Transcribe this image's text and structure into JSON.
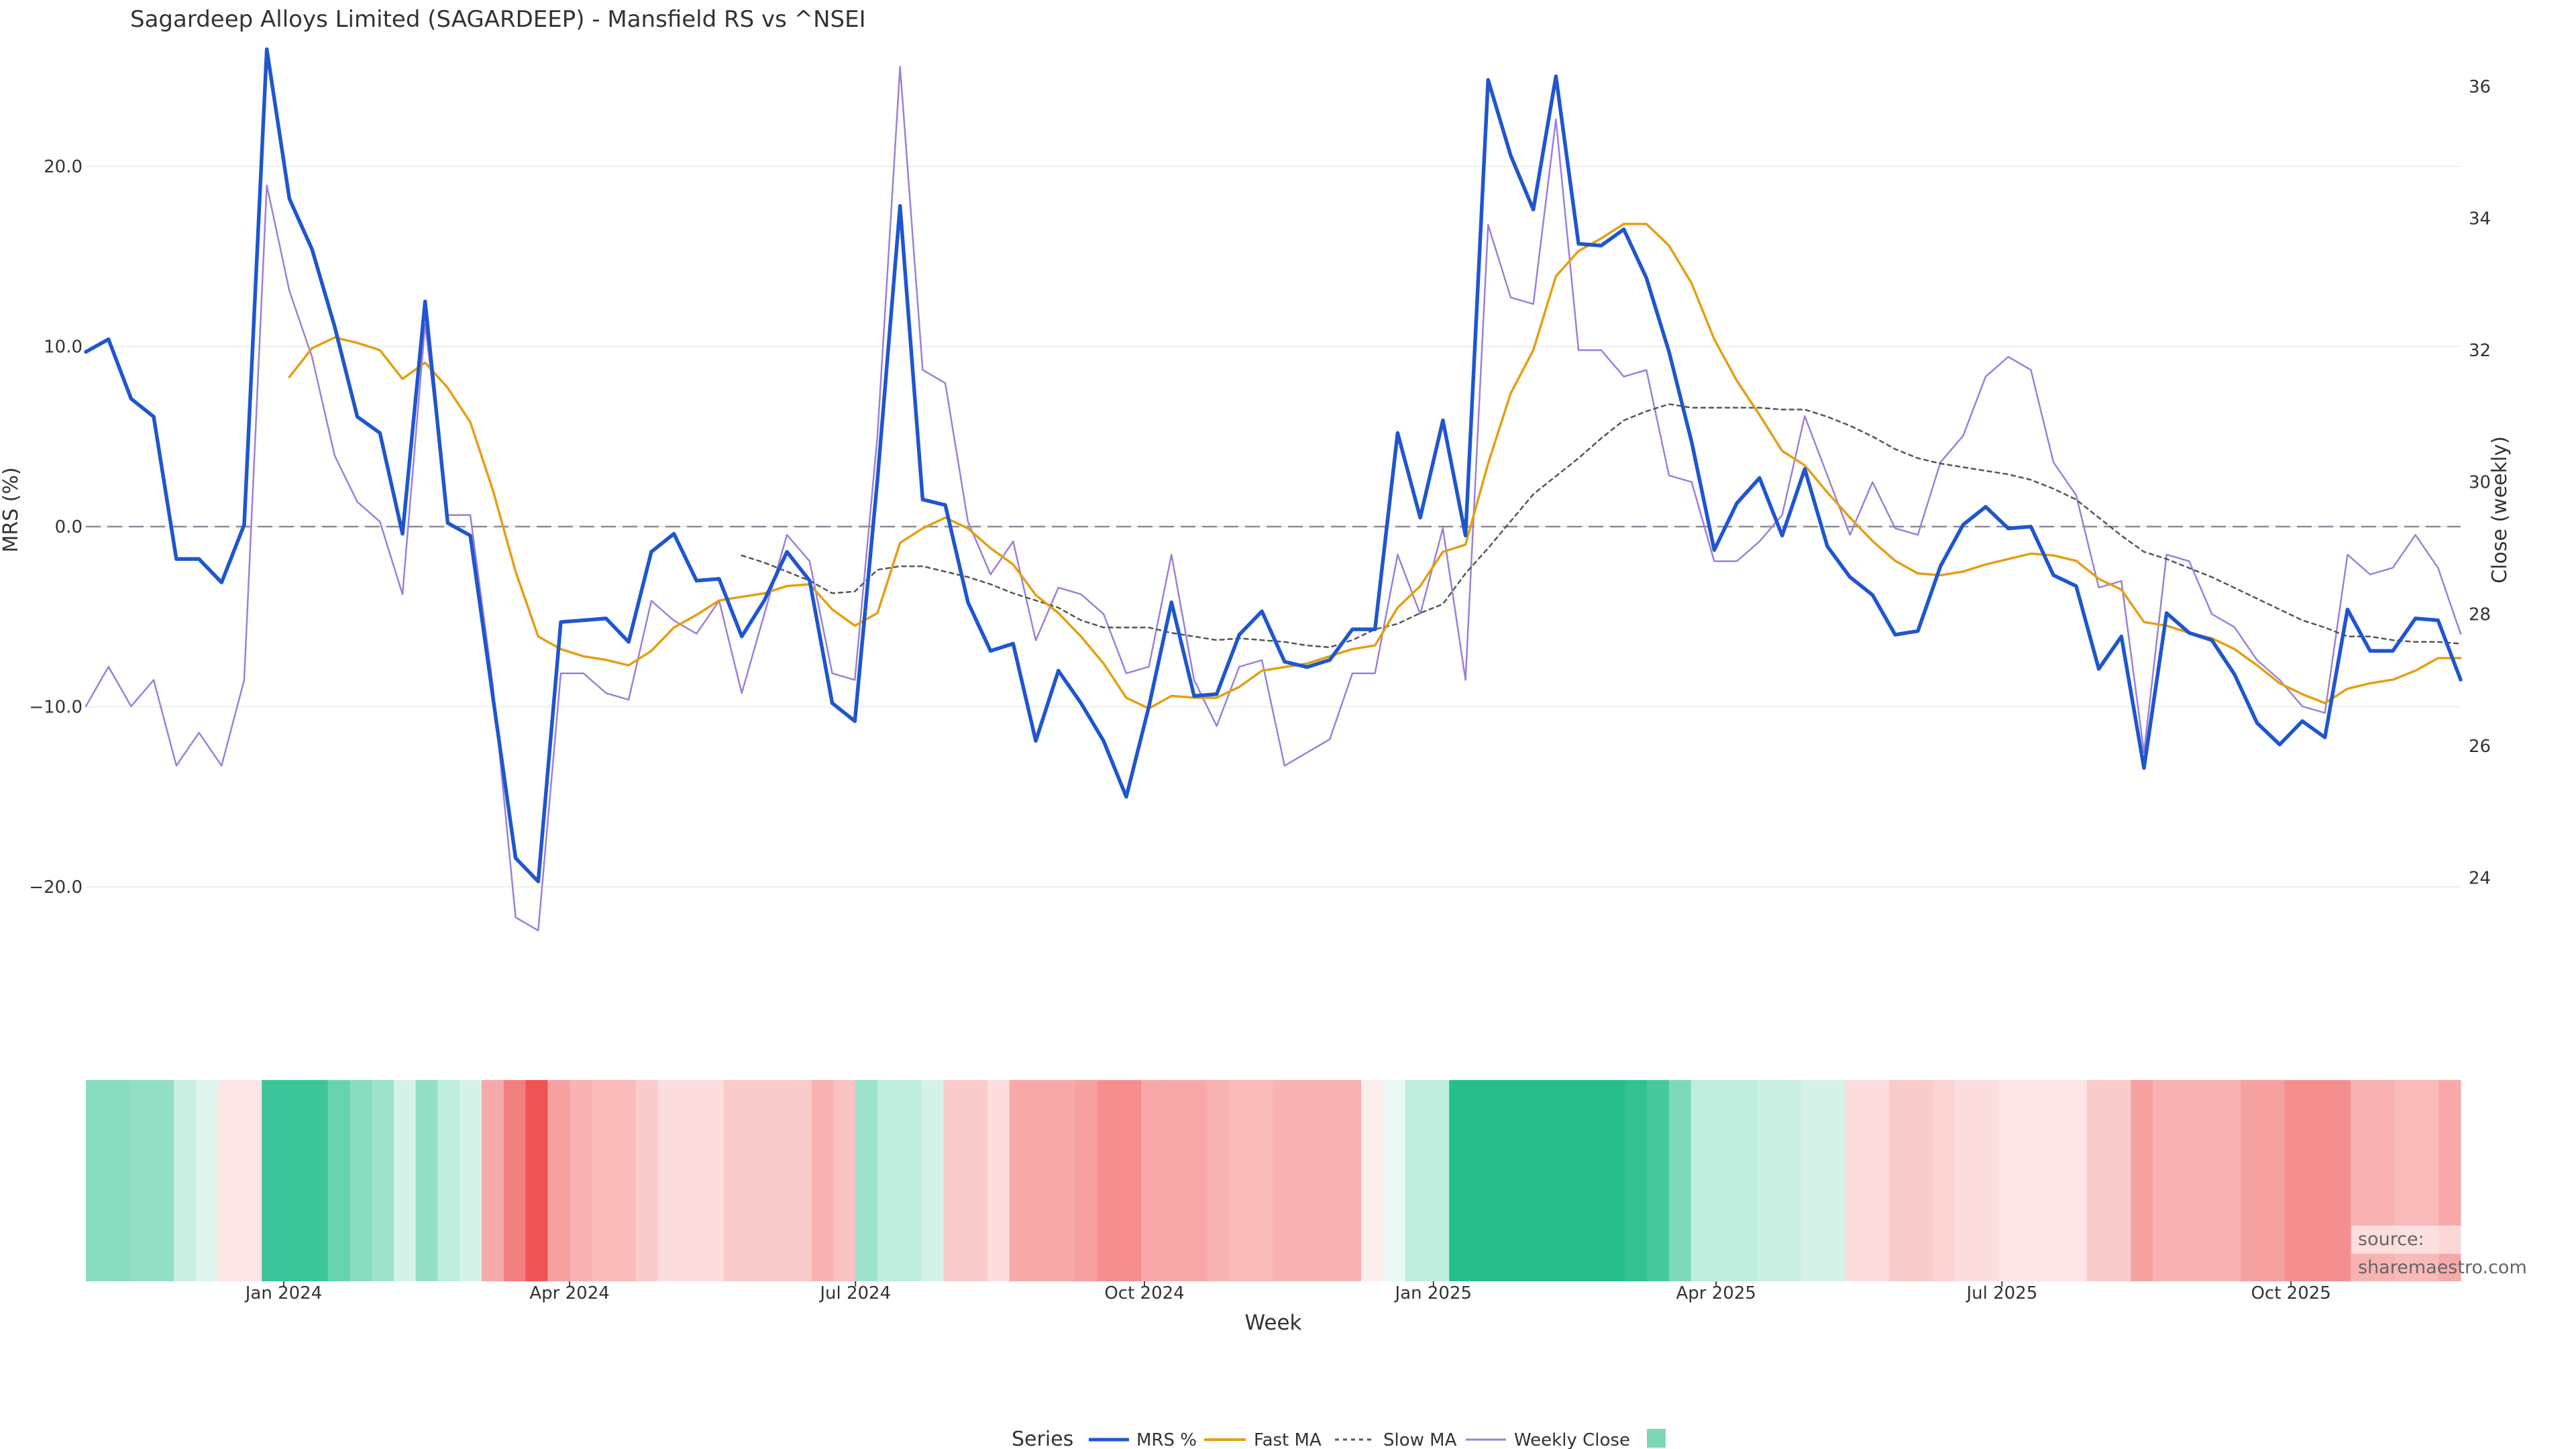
{
  "chart_data": {
    "type": "line",
    "title": "Sagardeep Alloys Limited (SAGARDEEP) - Mansfield RS vs ^NSEI",
    "xlabel": "Week",
    "ylabel": "MRS (%)",
    "y2label": "Close (weekly)",
    "ylim": [
      -27,
      27
    ],
    "y2lim": [
      21.95,
      36.7
    ],
    "yticks": [
      "20.0",
      "10.0",
      "0.0",
      "−10.0",
      "−20.0"
    ],
    "y2ticks": [
      "36",
      "34",
      "32",
      "30",
      "28",
      "26",
      "24"
    ],
    "xticks": [
      "Jan 2024",
      "Apr 2024",
      "Jul 2024",
      "Oct 2024",
      "Jan 2025",
      "Apr 2025",
      "Jul 2025",
      "Oct 2025"
    ],
    "x_start": "2023-10-30",
    "x_end": "2025-11-24",
    "legend_title": "Series",
    "legend_placement": "bottom-center",
    "source": "source: sharemaestro.com",
    "colors": {
      "mrs": "#1f56cf",
      "fast": "#e49f12",
      "slow": "#555555",
      "close": "#9d7fd8",
      "zero": "#8a8a98",
      "heat_pos": "#26bf8c",
      "heat_neg": "#ef5353"
    },
    "series": [
      {
        "name": "MRS %",
        "values": [
          9.7,
          10.4,
          7.1,
          6.1,
          -1.8,
          -1.8,
          -3.1,
          0.1,
          26.5,
          18.2,
          15.4,
          11.1,
          6.1,
          5.2,
          -0.4,
          12.5,
          0.2,
          -0.5,
          -9.5,
          -18.4,
          -19.7,
          -5.3,
          -5.2,
          -5.1,
          -6.4,
          -1.4,
          -0.4,
          -3.0,
          -2.9,
          -6.1,
          -4.1,
          -1.4,
          -3.0,
          -9.8,
          -10.8,
          2.6,
          17.8,
          1.5,
          1.2,
          -4.2,
          -6.9,
          -6.5,
          -11.9,
          -8.0,
          -9.8,
          -11.9,
          -15.0,
          -10.0,
          -4.2,
          -9.4,
          -9.3,
          -6.0,
          -4.7,
          -7.5,
          -7.8,
          -7.4,
          -5.7,
          -5.7,
          5.2,
          0.5,
          5.9,
          -0.5,
          24.8,
          20.6,
          17.6,
          25.0,
          15.7,
          15.6,
          16.5,
          13.8,
          9.7,
          4.7,
          -1.3,
          1.3,
          2.7,
          -0.5,
          3.2,
          -1.1,
          -2.8,
          -3.8,
          -6.0,
          -5.8,
          -2.2,
          0.1,
          1.1,
          -0.1,
          0.0,
          -2.7,
          -3.3,
          -7.9,
          -6.1,
          -13.4,
          -4.8,
          -5.9,
          -6.3,
          -8.2,
          -10.9,
          -12.1,
          -10.8,
          -11.7,
          -4.6,
          -6.9,
          -6.9,
          -5.1,
          -5.2,
          -8.5
        ]
      },
      {
        "name": "Fast MA",
        "values": [
          null,
          null,
          null,
          null,
          null,
          null,
          null,
          null,
          null,
          8.3,
          9.9,
          10.5,
          10.2,
          9.8,
          8.2,
          9.1,
          7.7,
          5.8,
          2.0,
          -2.5,
          -6.1,
          -6.8,
          -7.2,
          -7.4,
          -7.7,
          -6.9,
          -5.6,
          -4.9,
          -4.1,
          -3.9,
          -3.7,
          -3.3,
          -3.2,
          -4.6,
          -5.5,
          -4.8,
          -0.9,
          -0.1,
          0.5,
          -0.1,
          -1.2,
          -2.1,
          -3.8,
          -4.8,
          -6.1,
          -7.6,
          -9.5,
          -10.1,
          -9.4,
          -9.5,
          -9.5,
          -8.9,
          -8.0,
          -7.8,
          -7.6,
          -7.2,
          -6.8,
          -6.6,
          -4.5,
          -3.3,
          -1.4,
          -1.0,
          3.5,
          7.4,
          9.8,
          13.9,
          15.3,
          16.0,
          16.8,
          16.8,
          15.6,
          13.5,
          10.4,
          8.1,
          6.2,
          4.2,
          3.4,
          1.9,
          0.5,
          -0.8,
          -1.9,
          -2.6,
          -2.7,
          -2.5,
          -2.1,
          -1.8,
          -1.5,
          -1.6,
          -1.9,
          -2.9,
          -3.5,
          -5.3,
          -5.5,
          -5.9,
          -6.2,
          -6.8,
          -7.7,
          -8.7,
          -9.3,
          -9.8,
          -9.0,
          -8.7,
          -8.5,
          -8.0,
          -7.3,
          -7.3
        ]
      },
      {
        "name": "Slow MA",
        "values": [
          null,
          null,
          null,
          null,
          null,
          null,
          null,
          null,
          null,
          null,
          null,
          null,
          null,
          null,
          null,
          null,
          null,
          null,
          null,
          null,
          null,
          null,
          null,
          null,
          null,
          null,
          null,
          null,
          null,
          -1.6,
          -2.0,
          -2.5,
          -3.0,
          -3.7,
          -3.6,
          -2.4,
          -2.2,
          -2.2,
          -2.5,
          -2.8,
          -3.2,
          -3.7,
          -4.1,
          -4.5,
          -5.2,
          -5.6,
          -5.6,
          -5.6,
          -5.9,
          -6.1,
          -6.3,
          -6.2,
          -6.3,
          -6.4,
          -6.6,
          -6.7,
          -6.3,
          -5.7,
          -5.4,
          -4.8,
          -4.3,
          -2.6,
          -1.2,
          0.3,
          1.8,
          2.8,
          3.8,
          4.9,
          5.9,
          6.4,
          6.8,
          6.6,
          6.6,
          6.6,
          6.6,
          6.5,
          6.5,
          6.1,
          5.6,
          5.0,
          4.3,
          3.8,
          3.5,
          3.3,
          3.1,
          2.9,
          2.6,
          2.1,
          1.5,
          0.5,
          -0.5,
          -1.4,
          -1.8,
          -2.3,
          -2.8,
          -3.4,
          -4.0,
          -4.6,
          -5.2,
          -5.6,
          -6.1,
          -6.1,
          -6.3,
          -6.4,
          -6.4,
          -6.5
        ]
      },
      {
        "name": "Weekly Close",
        "axis": "right",
        "values": [
          26.6,
          27.2,
          26.6,
          27.0,
          25.7,
          26.2,
          25.7,
          27.0,
          34.5,
          32.9,
          31.9,
          30.4,
          29.7,
          29.4,
          28.3,
          32.4,
          29.5,
          29.5,
          26.9,
          23.4,
          23.2,
          27.1,
          27.1,
          26.8,
          26.7,
          28.2,
          27.9,
          27.7,
          28.2,
          26.8,
          28.0,
          29.2,
          28.8,
          27.1,
          27.0,
          30.7,
          36.3,
          31.7,
          31.5,
          29.4,
          28.6,
          29.1,
          27.6,
          28.4,
          28.3,
          28.0,
          27.1,
          27.2,
          28.9,
          27.0,
          26.3,
          27.2,
          27.3,
          25.7,
          25.9,
          26.1,
          27.1,
          27.1,
          28.9,
          28.0,
          29.3,
          27.0,
          33.9,
          32.8,
          32.7,
          35.5,
          32.0,
          32.0,
          31.6,
          31.7,
          30.1,
          30.0,
          28.8,
          28.8,
          29.1,
          29.5,
          31.0,
          30.1,
          29.2,
          30.0,
          29.3,
          29.2,
          30.3,
          30.7,
          31.6,
          31.9,
          31.7,
          30.3,
          29.8,
          28.4,
          28.5,
          25.9,
          28.9,
          28.8,
          28.0,
          27.8,
          27.3,
          27.0,
          26.6,
          26.5,
          28.9,
          28.6,
          28.7,
          29.2,
          28.7,
          27.7
        ]
      },
      {
        "name": "",
        "type": "heatmap",
        "values": [
          0.55,
          0.55,
          0.5,
          0.5,
          0.25,
          0.15,
          -0.15,
          -0.15,
          0.9,
          0.9,
          0.9,
          0.7,
          0.55,
          0.45,
          0.2,
          0.5,
          0.3,
          0.2,
          -0.5,
          -0.75,
          -1.0,
          -0.55,
          -0.45,
          -0.4,
          -0.4,
          -0.3,
          -0.2,
          -0.2,
          -0.2,
          -0.3,
          -0.3,
          -0.3,
          -0.3,
          -0.45,
          -0.35,
          0.45,
          0.3,
          0.3,
          0.2,
          -0.3,
          -0.3,
          -0.2,
          -0.5,
          -0.5,
          -0.5,
          -0.55,
          -0.65,
          -0.65,
          -0.5,
          -0.5,
          -0.5,
          -0.45,
          -0.4,
          -0.4,
          -0.45,
          -0.45,
          -0.45,
          -0.45,
          -0.1,
          0.1,
          0.3,
          0.3,
          1.0,
          1.0,
          1.0,
          1.0,
          1.0,
          1.0,
          1.0,
          1.0,
          0.95,
          0.85,
          0.6,
          0.3,
          0.3,
          0.3,
          0.25,
          0.25,
          0.2,
          0.2,
          -0.2,
          -0.2,
          -0.3,
          -0.3,
          -0.25,
          -0.2,
          -0.2,
          -0.15,
          -0.15,
          -0.15,
          -0.15,
          -0.3,
          -0.3,
          -0.55,
          -0.45,
          -0.45,
          -0.45,
          -0.45,
          -0.55,
          -0.55,
          -0.65,
          -0.65,
          -0.65,
          -0.45,
          -0.45,
          -0.4,
          -0.4,
          -0.5
        ]
      }
    ]
  }
}
